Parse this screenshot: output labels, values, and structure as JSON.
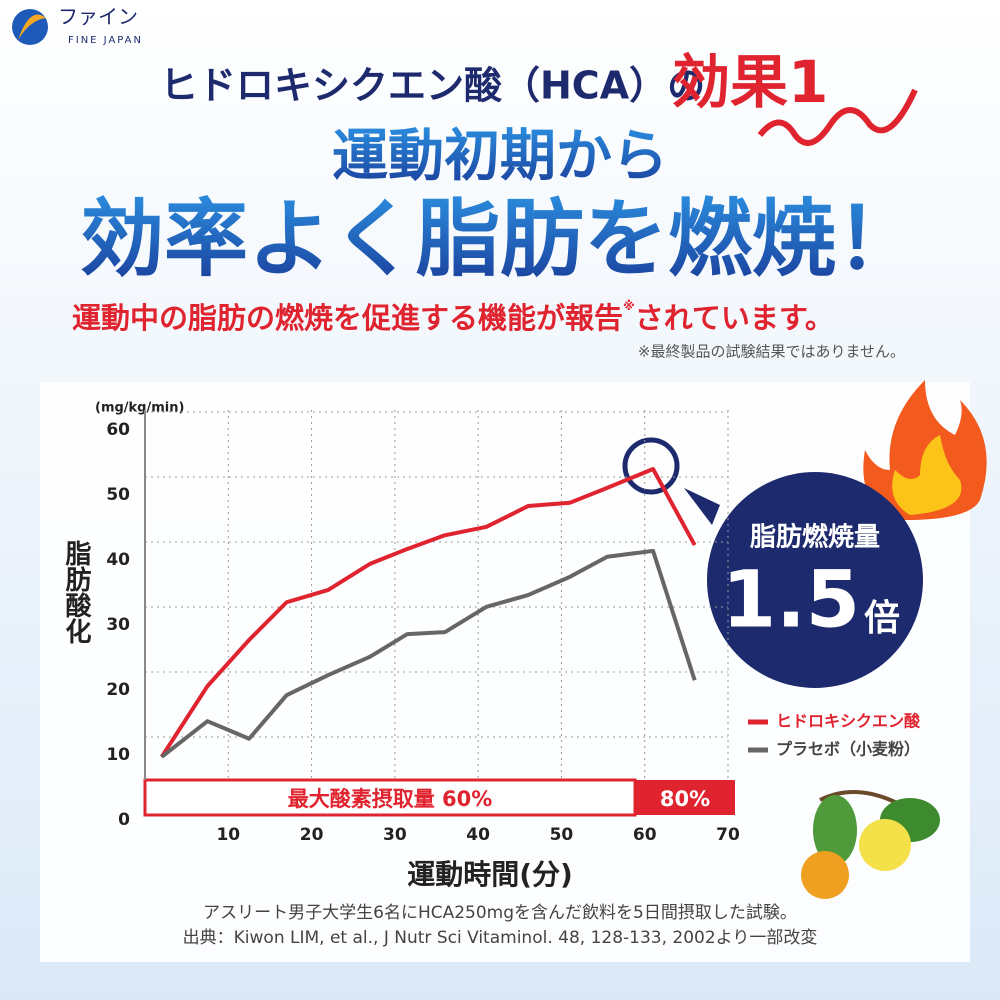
{
  "header": {
    "logo_ja": "ファイン",
    "logo_en": "FINE JAPAN",
    "title_line1": "ヒドロキシクエン酸（HCA）の",
    "badge": "効果1",
    "headline1": "運動初期から",
    "headline2": "効率よく脂肪を燃焼！",
    "subline": "運動中の脂肪の燃焼を促進する機能が報告",
    "note_mark": "※",
    "subline_end": "されています。",
    "disclaimer": "※最終製品の試験結果ではありません。"
  },
  "chart_data": {
    "type": "line",
    "y_unit": "(mg/kg/min)",
    "ylabel": "脂肪酸化",
    "xlabel": "運動時間(分)",
    "x": [
      2,
      7.5,
      12.5,
      17,
      22,
      27,
      31.5,
      36,
      41,
      46,
      51,
      55.5,
      61,
      66
    ],
    "series": [
      {
        "name": "ヒドロキシクエン酸",
        "color": "#e0242f",
        "values": [
          9.7,
          20.6,
          27.7,
          33.5,
          35.4,
          39.4,
          41.7,
          43.8,
          45.1,
          48.3,
          48.8,
          51.1,
          54,
          42.3
        ]
      },
      {
        "name": "プラセボ（小麦粉）",
        "color": "#666666",
        "values": [
          9.7,
          15.2,
          12.5,
          19.2,
          22.3,
          25.1,
          28.6,
          28.9,
          32.8,
          34.6,
          37.4,
          40.5,
          41.4,
          21.5
        ]
      }
    ],
    "xlim": [
      0,
      70
    ],
    "ylim": [
      0,
      60
    ],
    "xticks": [
      10,
      20,
      30,
      40,
      50,
      60,
      70
    ],
    "yticks": [
      0,
      10,
      20,
      30,
      40,
      50,
      60
    ],
    "grid": true,
    "band_low": "最大酸素摂取量 60%",
    "band_high": "80%",
    "callout": {
      "label": "脂肪燃焼量",
      "value": 1.5,
      "suffix": "倍"
    }
  },
  "footer": {
    "study": "アスリート男子大学生6名にHCA250mgを含んだ飲料を5日間摂取した試験。",
    "source": "出典：Kiwon LIM, et al., J Nutr Sci Vitaminol. 48, 128-133, 2002より一部改変"
  }
}
